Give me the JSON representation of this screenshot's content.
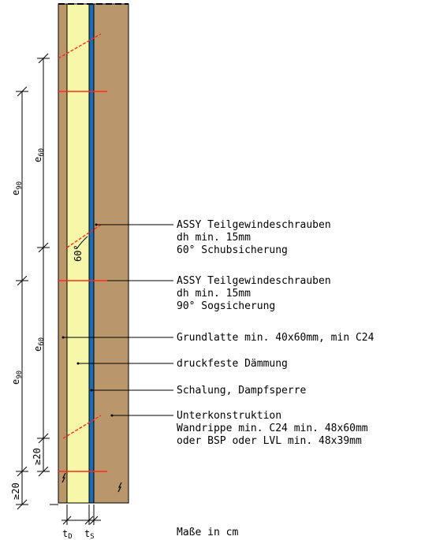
{
  "colors": {
    "wood": "#b9976a",
    "insulation": "#f6f7a8",
    "membrane": "#1d6bb0",
    "screw": "#ff2a1a",
    "line": "#000000"
  },
  "annotations": {
    "screw60": {
      "line1": "ASSY Teilgewindeschrauben",
      "line2": "dh min. 15mm",
      "line3": "60° Schubsicherung"
    },
    "screw90": {
      "line1": "ASSY Teilgewindeschrauben",
      "line2": "dh min. 15mm",
      "line3": "90° Sogsicherung"
    },
    "grundlatte": "Grundlatte min. 40x60mm, min C24",
    "daemmung": "druckfeste Dämmung",
    "schalung": "Schalung, Dampfsperre",
    "unterkonstruktion": {
      "line1": "Unterkonstruktion",
      "line2": "Wandrippe min. C24 min. 48x60mm",
      "line3": "oder BSP oder LVL min. 48x39mm"
    }
  },
  "dimensions": {
    "e": "e",
    "sub90": "90",
    "sub60": "60",
    "min20": "≥20",
    "angle": "60°",
    "tD_t": "t",
    "tD_sub": "D",
    "tS_t": "t",
    "tS_sub": "S"
  },
  "footer": {
    "units": "Maße in cm"
  }
}
